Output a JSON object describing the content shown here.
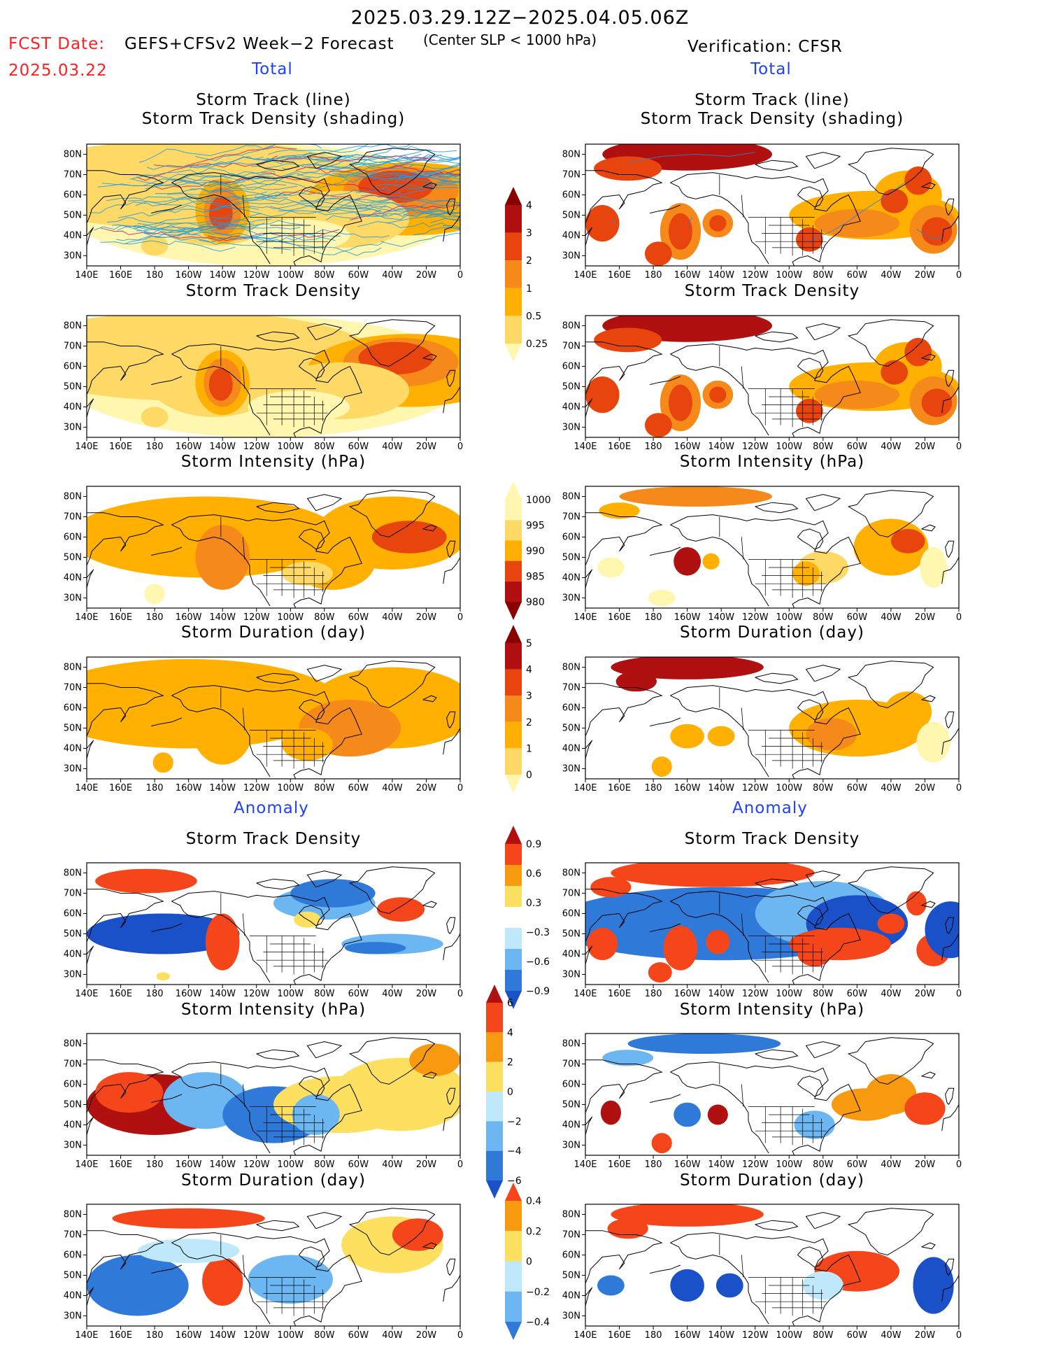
{
  "header": {
    "title": "2025.03.29.12Z−2025.04.05.06Z",
    "fcst_date_label": "FCST Date:",
    "fcst_date": "2025.03.22",
    "model_label": "GEFS+CFSv2 Week−2 Forecast",
    "criterion": "(Center SLP < 1000 hPa)",
    "verification_label": "Verification: CFSR",
    "section_total_left": "Total",
    "section_total_right": "Total",
    "section_anom_left": "Anomaly",
    "section_anom_right": "Anomaly"
  },
  "panel_titles": {
    "track_line": "Storm Track (line)",
    "track_shading": "Storm Track Density (shading)",
    "density": "Storm Track Density",
    "intensity": "Storm Intensity (hPa)",
    "duration": "Storm Duration (day)"
  },
  "axes": {
    "lon_labels": [
      "140E",
      "160E",
      "180",
      "160W",
      "140W",
      "120W",
      "100W",
      "80W",
      "60W",
      "40W",
      "20W",
      "0"
    ],
    "lat_labels": [
      "80N",
      "70N",
      "60N",
      "50N",
      "40N",
      "30N"
    ]
  },
  "colorbars": {
    "density_total": [
      "0.25",
      "0.5",
      "1",
      "2",
      "3",
      "4"
    ],
    "intensity_total": [
      "1000",
      "995",
      "990",
      "985",
      "980"
    ],
    "duration_total": [
      "0",
      "1",
      "2",
      "3",
      "4",
      "5"
    ],
    "density_anom": [
      "0.9",
      "0.6",
      "0.3",
      "−0.3",
      "−0.6",
      "−0.9"
    ],
    "intensity_anom": [
      "6",
      "4",
      "2",
      "0",
      "−2",
      "−4",
      "−6"
    ],
    "duration_anom": [
      "0.4",
      "0.2",
      "0",
      "−0.2",
      "−0.4"
    ]
  },
  "colors": {
    "total_scale": [
      "#fff7b0",
      "#ffd966",
      "#ffb000",
      "#f58a1a",
      "#e8440e",
      "#b01010",
      "#8a0000"
    ],
    "anom_warm": [
      "#fde060",
      "#f89a10",
      "#f5451a",
      "#b01010"
    ],
    "anom_cool": [
      "#bfe8fb",
      "#6cb6f2",
      "#2f7ad8",
      "#1a50c8"
    ]
  }
}
